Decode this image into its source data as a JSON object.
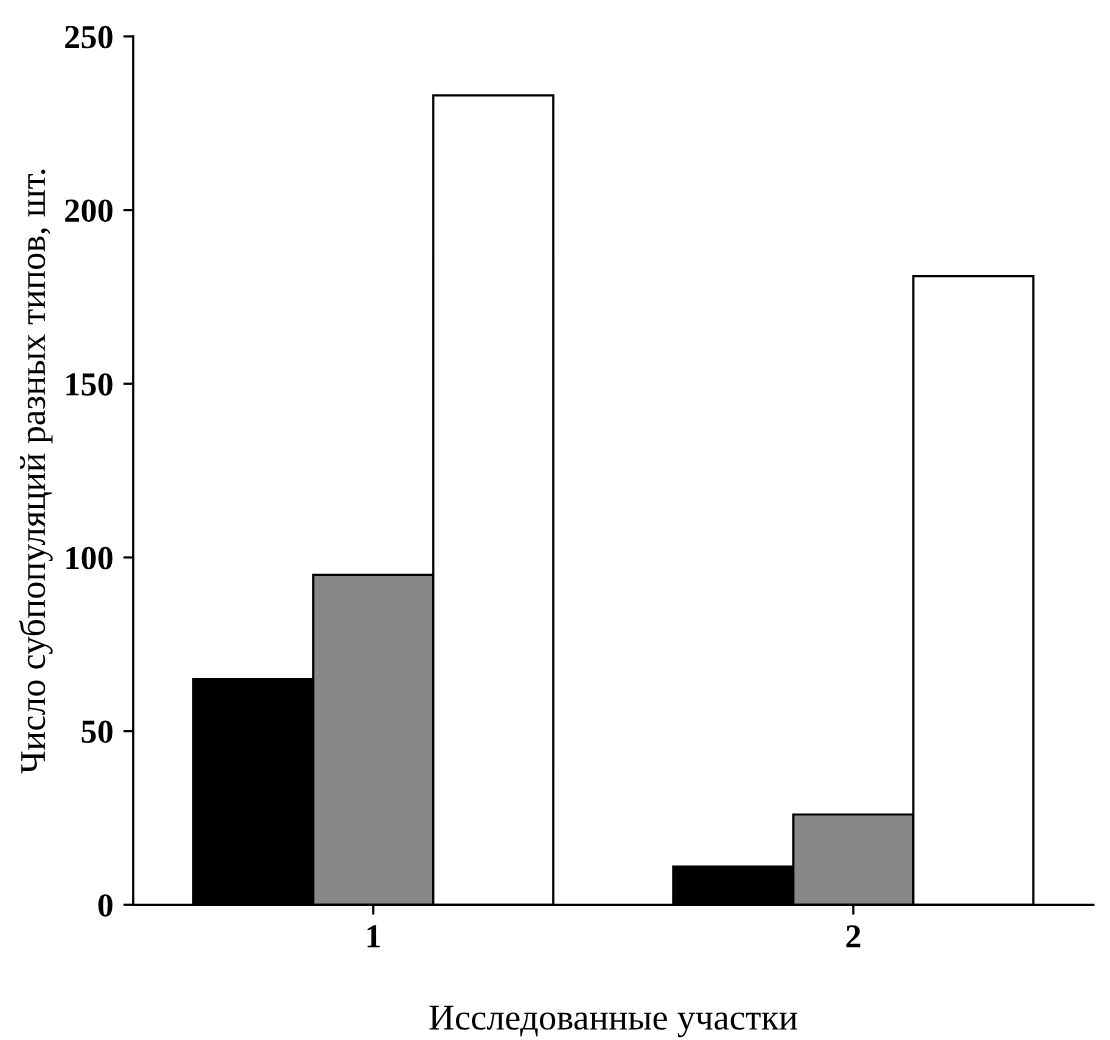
{
  "chart_data": {
    "type": "bar",
    "xlabel": "Исследованные участки",
    "ylabel": "Число субпопуляций разных типов, шт.",
    "categories": [
      "1",
      "2"
    ],
    "series": [
      {
        "color": "#000000",
        "values": [
          65,
          11
        ]
      },
      {
        "color": "#888888",
        "values": [
          95,
          26
        ]
      },
      {
        "color": "#ffffff",
        "values": [
          233,
          181
        ]
      }
    ],
    "ylim": [
      0,
      250
    ],
    "yticks": [
      0,
      50,
      100,
      150,
      200,
      250
    ],
    "grid": false
  }
}
